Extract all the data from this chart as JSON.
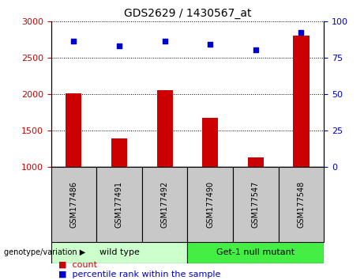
{
  "title": "GDS2629 / 1430567_at",
  "samples": [
    "GSM177486",
    "GSM177491",
    "GSM177492",
    "GSM177490",
    "GSM177547",
    "GSM177548"
  ],
  "counts": [
    2005,
    1390,
    2055,
    1670,
    1130,
    2800
  ],
  "percentiles": [
    86,
    83,
    86,
    84,
    80,
    92
  ],
  "ylim_left": [
    1000,
    3000
  ],
  "ylim_right": [
    0,
    100
  ],
  "yticks_left": [
    1000,
    1500,
    2000,
    2500,
    3000
  ],
  "yticks_right": [
    0,
    25,
    50,
    75,
    100
  ],
  "bar_color": "#cc0000",
  "dot_color": "#0000cc",
  "group1_label": "wild type",
  "group2_label": "Get-1 null mutant",
  "group1_indices": [
    0,
    1,
    2
  ],
  "group2_indices": [
    3,
    4,
    5
  ],
  "group1_color": "#ccffcc",
  "group2_color": "#44ee44",
  "legend_count_label": "count",
  "legend_percentile_label": "percentile rank within the sample",
  "genotype_label": "genotype/variation",
  "bg_color": "#c8c8c8",
  "plot_bg": "#ffffff",
  "fig_width": 4.61,
  "fig_height": 3.54,
  "dpi": 100
}
